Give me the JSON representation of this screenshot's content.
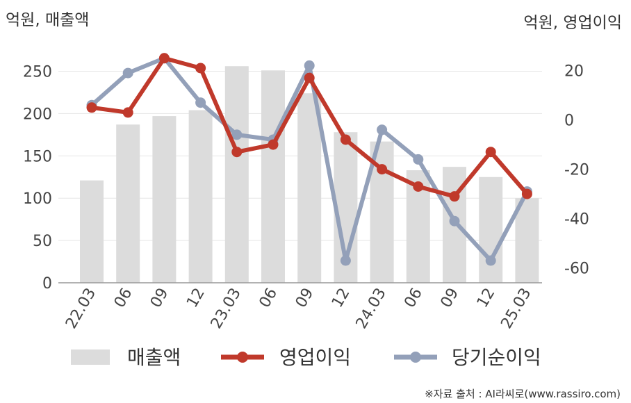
{
  "chart_data": {
    "type": "bar+line",
    "categories": [
      "22.03",
      "06",
      "09",
      "12",
      "23.03",
      "06",
      "09",
      "12",
      "24.03",
      "06",
      "09",
      "12",
      "25.03"
    ],
    "left_axis": {
      "label": "억원, 매출액",
      "ylim": [
        0,
        280
      ],
      "ticks": [
        0,
        50,
        100,
        150,
        200,
        250
      ]
    },
    "right_axis": {
      "label": "억원, 영업이익",
      "ylim": [
        -66,
        30
      ],
      "ticks": [
        20,
        0,
        -20,
        -40,
        -60
      ]
    },
    "series": [
      {
        "name": "매출액",
        "type": "bar",
        "axis": "left",
        "color": "#dcdcdc",
        "values": [
          121,
          187,
          197,
          204,
          256,
          251,
          224,
          178,
          167,
          133,
          137,
          125,
          100
        ]
      },
      {
        "name": "영업이익",
        "type": "line",
        "axis": "right",
        "color": "#c0392b",
        "values": [
          5,
          3,
          25,
          21,
          -13,
          -10,
          17,
          -8,
          -20,
          -27,
          -31,
          -13,
          -30
        ]
      },
      {
        "name": "당기순이익",
        "type": "line",
        "axis": "right",
        "color": "#93a0b9",
        "values": [
          6,
          19,
          25,
          7,
          -6,
          -8,
          22,
          -57,
          -4,
          -16,
          -41,
          -57,
          -29
        ]
      }
    ],
    "grid": true,
    "legend_position": "bottom",
    "source": "※자료 출처 : AI라씨로(www.rassiro.com)"
  }
}
